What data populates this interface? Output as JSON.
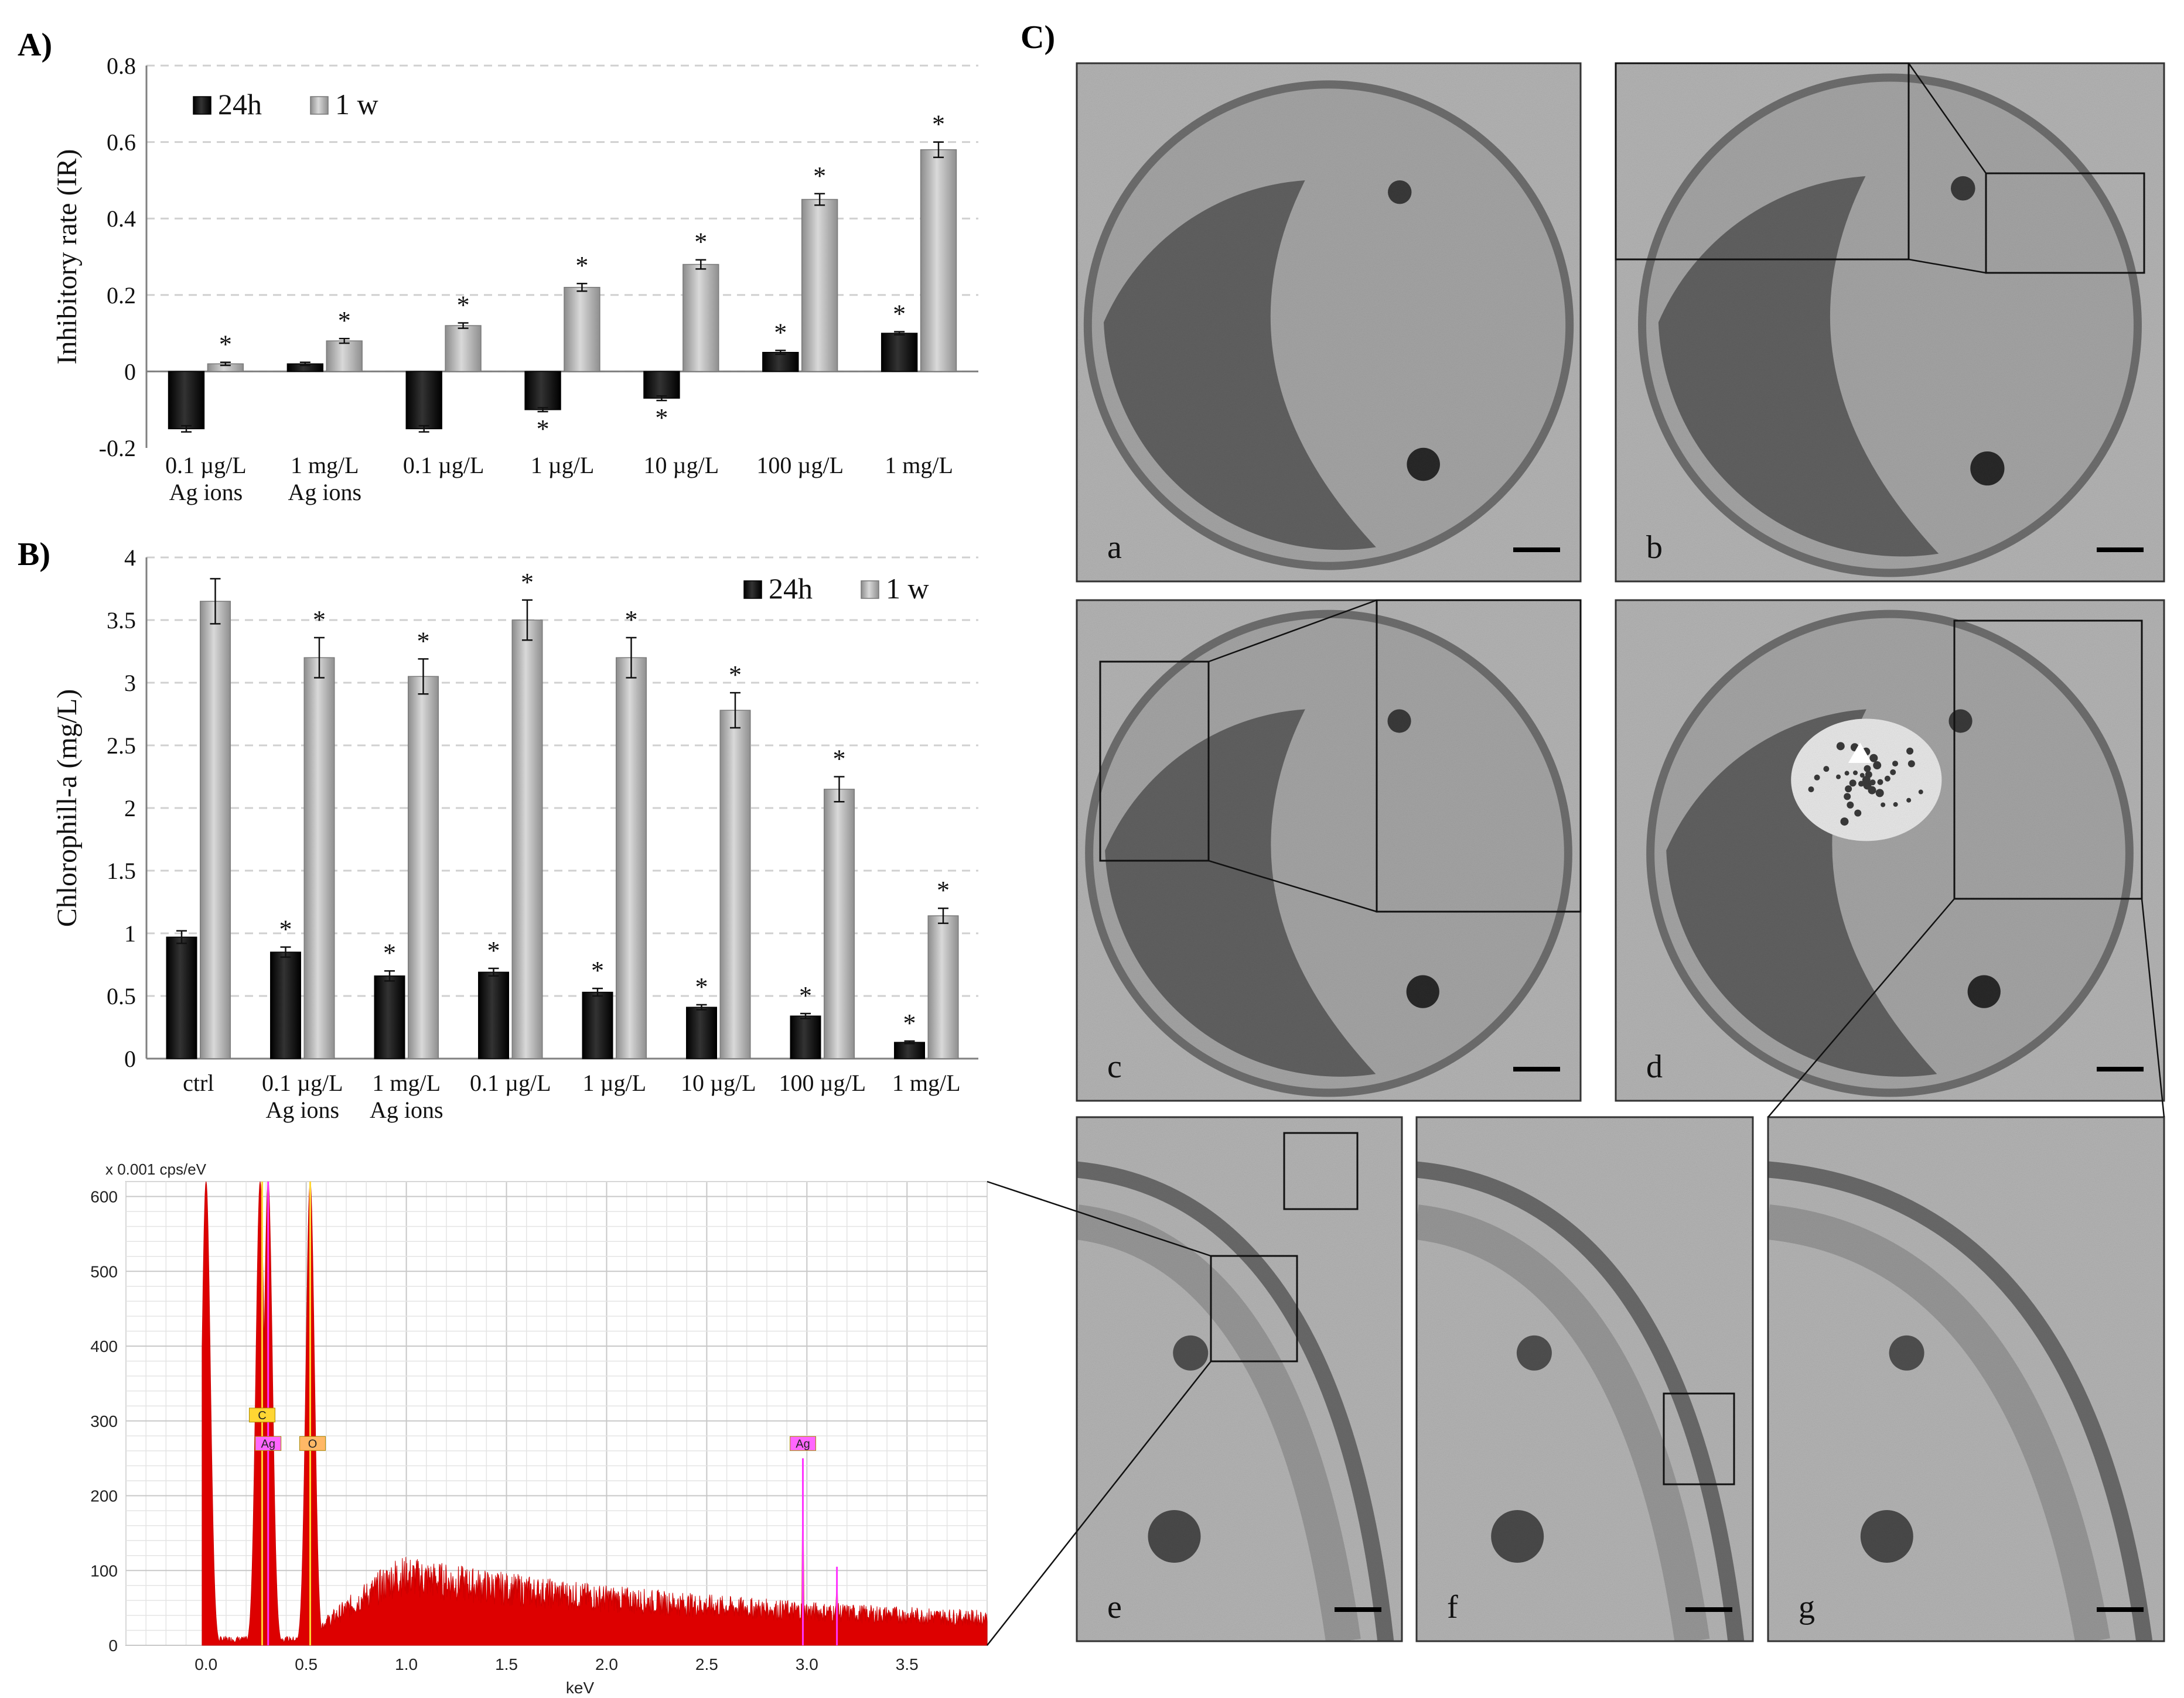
{
  "panel_labels": {
    "a": "A)",
    "b": "B)",
    "c": "C)"
  },
  "chart_data": [
    {
      "type": "bar",
      "panel": "A",
      "ylabel": "Inhibitory rate (IR)",
      "ylim": [
        -0.2,
        0.8
      ],
      "yticks": [
        "-0.2",
        "0",
        "0.2",
        "0.4",
        "0.6",
        "0.8"
      ],
      "yticks_values": [
        -0.2,
        0,
        0.2,
        0.4,
        0.6,
        0.8
      ],
      "categories": [
        "0.1 µg/L\nAg ions",
        "1 mg/L\nAg ions",
        "0.1 µg/L",
        "1  µg/L",
        "10  µg/L",
        "100 µg/L",
        "1 mg/L"
      ],
      "series": [
        {
          "name": "24h",
          "color": "#0d0d0d",
          "values": [
            -0.15,
            0.02,
            -0.15,
            -0.1,
            -0.07,
            0.05,
            0.1
          ],
          "errors": [
            0.008,
            0.004,
            0.008,
            0.005,
            0.006,
            0.005,
            0.004
          ],
          "significance": [
            "",
            "",
            "",
            "*",
            "*",
            "*",
            "*"
          ]
        },
        {
          "name": "1 w",
          "color": "#a6a6a6",
          "values": [
            0.02,
            0.08,
            0.12,
            0.22,
            0.28,
            0.45,
            0.58
          ],
          "errors": [
            0.004,
            0.006,
            0.007,
            0.01,
            0.012,
            0.015,
            0.02
          ],
          "significance": [
            "*",
            "*",
            "*",
            "*",
            "*",
            "*",
            "*"
          ]
        }
      ],
      "legend": "top-left",
      "grid": "horizontal dashed"
    },
    {
      "type": "bar",
      "panel": "B",
      "ylabel": "Chlorophill-a (mg/L)",
      "ylim": [
        0,
        4
      ],
      "yticks": [
        "0",
        "0.5",
        "1",
        "1.5",
        "2",
        "2.5",
        "3",
        "3.5",
        "4"
      ],
      "yticks_values": [
        0,
        0.5,
        1,
        1.5,
        2,
        2.5,
        3,
        3.5,
        4
      ],
      "categories": [
        "ctrl",
        "0.1 µg/L\nAg ions",
        "1 mg/L\nAg ions",
        "0.1 µg/L",
        "1  µg/L",
        "10  µg/L",
        "100 µg/L",
        "1 mg/L"
      ],
      "series": [
        {
          "name": "24h",
          "color": "#0d0d0d",
          "values": [
            0.97,
            0.85,
            0.66,
            0.69,
            0.53,
            0.41,
            0.34,
            0.13
          ],
          "errors": [
            0.05,
            0.04,
            0.04,
            0.03,
            0.03,
            0.02,
            0.02,
            0.01
          ],
          "significance": [
            "",
            "*",
            "*",
            "*",
            "*",
            "*",
            "*",
            "*"
          ]
        },
        {
          "name": "1 w",
          "color": "#a6a6a6",
          "values": [
            3.65,
            3.2,
            3.05,
            3.5,
            3.2,
            2.78,
            2.15,
            1.14
          ],
          "errors": [
            0.18,
            0.16,
            0.14,
            0.16,
            0.16,
            0.14,
            0.1,
            0.06
          ],
          "significance": [
            "",
            "*",
            "*",
            "*",
            "*",
            "*",
            "*",
            "*"
          ]
        }
      ],
      "legend": "top-right",
      "grid": "horizontal dashed"
    },
    {
      "type": "area",
      "panel": "EDX spectrum",
      "ylabel_top": "x 0.001 cps/eV",
      "xlabel": "keV",
      "xlim": [
        -0.4,
        3.9
      ],
      "ylim": [
        0,
        620
      ],
      "xticks": [
        "0.0",
        "0.5",
        "1.0",
        "1.5",
        "2.0",
        "2.5",
        "3.0",
        "3.5"
      ],
      "xticks_values": [
        0,
        0.5,
        1.0,
        1.5,
        2.0,
        2.5,
        3.0,
        3.5
      ],
      "yticks": [
        "0",
        "100",
        "200",
        "300",
        "400",
        "500",
        "600"
      ],
      "yticks_values": [
        0,
        100,
        200,
        300,
        400,
        500,
        600
      ],
      "peaks": [
        {
          "x": 0.0,
          "y": 620
        },
        {
          "x": 0.27,
          "y": 620
        },
        {
          "x": 0.31,
          "y": 620
        },
        {
          "x": 0.52,
          "y": 620
        },
        {
          "x": 2.98,
          "y": 250
        },
        {
          "x": 3.15,
          "y": 105
        }
      ],
      "element_markers": [
        {
          "label": "C",
          "x": 0.28,
          "color": "#ffd633",
          "line_color": "#ffd633"
        },
        {
          "label": "Ag",
          "x": 0.31,
          "color": "#ff66ff",
          "line_color": "#ff33ff"
        },
        {
          "label": "O",
          "x": 0.52,
          "color": "#ffb866",
          "line_color": "#ffd633"
        },
        {
          "label": "Ag",
          "x": 2.98,
          "color": "#ff66ff",
          "line_color": "#ff33ff"
        }
      ],
      "fill_color": "#dd0000",
      "grid": "both"
    }
  ],
  "legend_labels": {
    "s24h": "24h",
    "s1w": "1 w"
  },
  "micrograph_labels": [
    "a",
    "b",
    "c",
    "d",
    "e",
    "f",
    "g"
  ],
  "colors": {
    "bar_dark": "#0d0d0d",
    "bar_light": "#a6a6a6",
    "spectrum": "#dd0000",
    "micrograph_bg": "#9a9a9a"
  }
}
